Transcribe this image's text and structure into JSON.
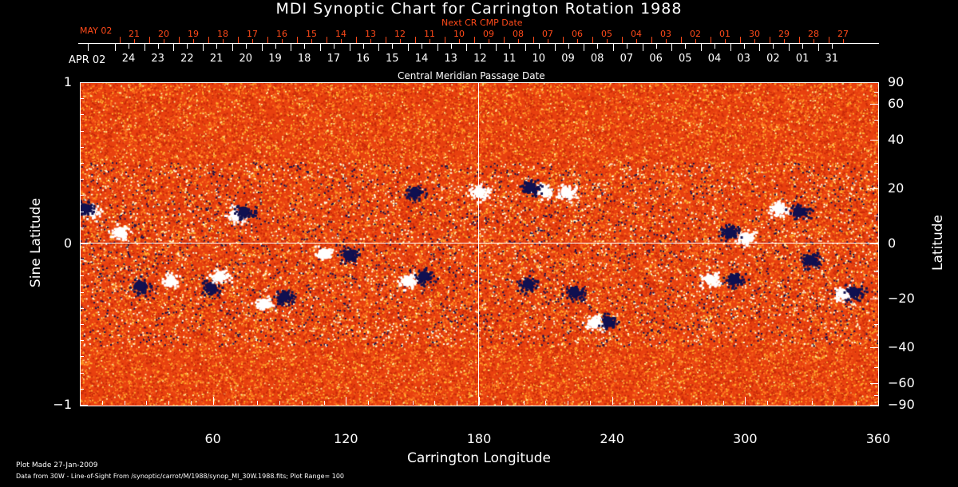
{
  "chart_data": {
    "type": "heatmap",
    "title": "MDI Synoptic Chart for Carrington Rotation 1988",
    "xlabel": "Carrington Longitude",
    "ylabel": "Sine Latitude",
    "y2label": "Latitude",
    "top_axis_label": "Central Meridian Passage Date",
    "top2_axis_label": "Next CR CMP Date",
    "xlim": [
      0,
      360
    ],
    "ylim": [
      -1,
      1
    ],
    "xticks": [
      "60",
      "120",
      "180",
      "240",
      "300",
      "360"
    ],
    "yticks": [
      "1",
      "0",
      "−1"
    ],
    "y2ticks": [
      "90",
      "60",
      "40",
      "20",
      "0",
      "−20",
      "−40",
      "−60",
      "−90"
    ],
    "y2tick_values": [
      90,
      60,
      40,
      20,
      0,
      -20,
      -40,
      -60,
      -90
    ],
    "cmp_start_label": "APR 02",
    "cmp_dates": [
      "24",
      "23",
      "22",
      "21",
      "20",
      "19",
      "18",
      "17",
      "16",
      "15",
      "14",
      "13",
      "12",
      "11",
      "10",
      "09",
      "08",
      "07",
      "06",
      "05",
      "04",
      "03",
      "02",
      "01",
      "31"
    ],
    "next_start_label": "MAY 02",
    "next_dates": [
      "21",
      "20",
      "19",
      "18",
      "17",
      "16",
      "15",
      "14",
      "13",
      "12",
      "11",
      "10",
      "09",
      "08",
      "07",
      "06",
      "05",
      "04",
      "03",
      "02",
      "01",
      "30",
      "29",
      "28",
      "27"
    ],
    "plot_range": 100,
    "colors": {
      "background": "#e8400f",
      "positive": "#ffffff",
      "negative": "#101050",
      "axis": "#ffffff",
      "accent": "#ff4a1a"
    },
    "features": [
      {
        "lon": 5,
        "sinlat": 0.2,
        "pol": 1
      },
      {
        "lon": 2,
        "sinlat": 0.22,
        "pol": -1
      },
      {
        "lon": 18,
        "sinlat": 0.07,
        "pol": 1
      },
      {
        "lon": 70,
        "sinlat": 0.18,
        "pol": 1
      },
      {
        "lon": 74,
        "sinlat": 0.2,
        "pol": -1
      },
      {
        "lon": 110,
        "sinlat": -0.06,
        "pol": 1
      },
      {
        "lon": 121,
        "sinlat": -0.07,
        "pol": -1
      },
      {
        "lon": 148,
        "sinlat": -0.23,
        "pol": 1
      },
      {
        "lon": 155,
        "sinlat": -0.2,
        "pol": -1
      },
      {
        "lon": 180,
        "sinlat": 0.32,
        "pol": 1
      },
      {
        "lon": 151,
        "sinlat": 0.32,
        "pol": -1
      },
      {
        "lon": 209,
        "sinlat": 0.33,
        "pol": 1
      },
      {
        "lon": 203,
        "sinlat": 0.35,
        "pol": -1
      },
      {
        "lon": 219,
        "sinlat": 0.32,
        "pol": 1
      },
      {
        "lon": 300,
        "sinlat": 0.04,
        "pol": 1
      },
      {
        "lon": 293,
        "sinlat": 0.07,
        "pol": -1
      },
      {
        "lon": 315,
        "sinlat": 0.22,
        "pol": 1
      },
      {
        "lon": 324,
        "sinlat": 0.2,
        "pol": -1
      },
      {
        "lon": 344,
        "sinlat": -0.31,
        "pol": 1
      },
      {
        "lon": 349,
        "sinlat": -0.3,
        "pol": -1
      },
      {
        "lon": 92,
        "sinlat": -0.33,
        "pol": -1
      },
      {
        "lon": 83,
        "sinlat": -0.37,
        "pol": 1
      },
      {
        "lon": 59,
        "sinlat": -0.27,
        "pol": -1
      },
      {
        "lon": 63,
        "sinlat": -0.2,
        "pol": 1
      },
      {
        "lon": 232,
        "sinlat": -0.49,
        "pol": 1
      },
      {
        "lon": 238,
        "sinlat": -0.48,
        "pol": -1
      },
      {
        "lon": 295,
        "sinlat": -0.22,
        "pol": -1
      },
      {
        "lon": 284,
        "sinlat": -0.22,
        "pol": 1
      },
      {
        "lon": 41,
        "sinlat": -0.23,
        "pol": 1
      },
      {
        "lon": 27,
        "sinlat": -0.26,
        "pol": -1
      },
      {
        "lon": 329,
        "sinlat": -0.1,
        "pol": -1
      },
      {
        "lon": 223,
        "sinlat": -0.3,
        "pol": -1
      },
      {
        "lon": 202,
        "sinlat": -0.25,
        "pol": -1
      }
    ]
  },
  "footer": {
    "plot_made": "Plot Made 27-Jan-2009",
    "data_from": "Data from 30W - Line-of-Sight From /synoptic/carrot/M/1988/synop_Ml_30W.1988.fits; Plot Range=  100"
  }
}
